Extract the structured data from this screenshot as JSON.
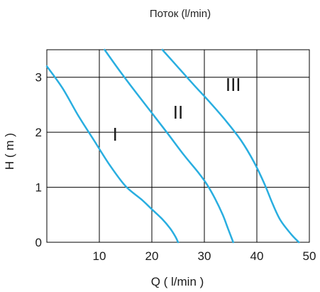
{
  "chart_data": {
    "type": "line",
    "title": "Поток (l/min)",
    "xlabel": "Q ( l/min )",
    "ylabel": "H ( m )",
    "xlim": [
      0,
      50
    ],
    "ylim": [
      0,
      3.5
    ],
    "x_ticks": [
      10,
      20,
      30,
      40,
      50
    ],
    "y_ticks": [
      0,
      1,
      2,
      3
    ],
    "grid": true,
    "line_color": "#29aee0",
    "grid_color": "#000000",
    "series": [
      {
        "name": "I",
        "points": [
          [
            0,
            3.2
          ],
          [
            3,
            2.8
          ],
          [
            6,
            2.3
          ],
          [
            9,
            1.85
          ],
          [
            12,
            1.4
          ],
          [
            15,
            1.02
          ],
          [
            18,
            0.78
          ],
          [
            20,
            0.6
          ],
          [
            22,
            0.42
          ],
          [
            23.5,
            0.25
          ],
          [
            24.5,
            0.1
          ],
          [
            25,
            0
          ]
        ]
      },
      {
        "name": "II",
        "points": [
          [
            11,
            3.5
          ],
          [
            14,
            3.1
          ],
          [
            17,
            2.72
          ],
          [
            20,
            2.35
          ],
          [
            23,
            1.98
          ],
          [
            26,
            1.6
          ],
          [
            29,
            1.25
          ],
          [
            30.5,
            1.05
          ],
          [
            32,
            0.8
          ],
          [
            33.5,
            0.5
          ],
          [
            34.5,
            0.25
          ],
          [
            35.5,
            0
          ]
        ]
      },
      {
        "name": "III",
        "points": [
          [
            22,
            3.5
          ],
          [
            25,
            3.18
          ],
          [
            28,
            2.86
          ],
          [
            31,
            2.55
          ],
          [
            34,
            2.22
          ],
          [
            37,
            1.85
          ],
          [
            39.5,
            1.45
          ],
          [
            41.5,
            1.05
          ],
          [
            43,
            0.7
          ],
          [
            44.5,
            0.4
          ],
          [
            46.5,
            0.15
          ],
          [
            48,
            0
          ]
        ]
      }
    ],
    "series_label_positions": [
      [
        13,
        1.85
      ],
      [
        25,
        2.25
      ],
      [
        35.5,
        2.75
      ]
    ]
  }
}
